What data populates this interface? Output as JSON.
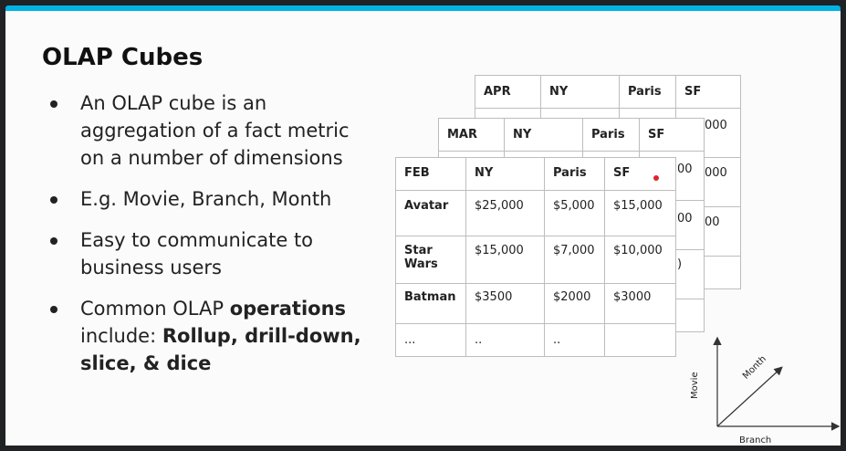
{
  "slide": {
    "title": "OLAP Cubes",
    "bullets": [
      {
        "text": "An OLAP cube is an aggregation of a fact metric on a number of dimensions"
      },
      {
        "text": "E.g. Movie, Branch, Month"
      },
      {
        "text": "Easy to communicate to business users"
      },
      {
        "pre": "Common OLAP ",
        "bold1": "operations",
        "mid": " include: ",
        "bold2": "Rollup, drill-down, slice, & dice"
      }
    ]
  },
  "tables": {
    "apr": {
      "header": [
        "APR",
        "NY",
        "Paris",
        "SF"
      ],
      "visible_fragments": [
        "000",
        "000",
        "00"
      ]
    },
    "mar": {
      "header": [
        "MAR",
        "NY",
        "Paris",
        "SF"
      ],
      "visible_fragments": [
        "00",
        "00",
        ")"
      ]
    },
    "feb": {
      "header": [
        "FEB",
        "NY",
        "Paris",
        "SF"
      ],
      "rows": [
        [
          "Avatar",
          "$25,000",
          "$5,000",
          "$15,000"
        ],
        [
          "Star Wars",
          "$15,000",
          "$7,000",
          "$10,000"
        ],
        [
          "Batman",
          "$3500",
          "$2000",
          "$3000"
        ],
        [
          "...",
          "..",
          "..",
          ""
        ]
      ]
    }
  },
  "axes": {
    "y_label": "Movie",
    "x_label": "Branch",
    "diag_label": "Month"
  },
  "colors": {
    "accent": "#02b3e4",
    "frame": "#1f2326",
    "marker": "#e0222d"
  }
}
